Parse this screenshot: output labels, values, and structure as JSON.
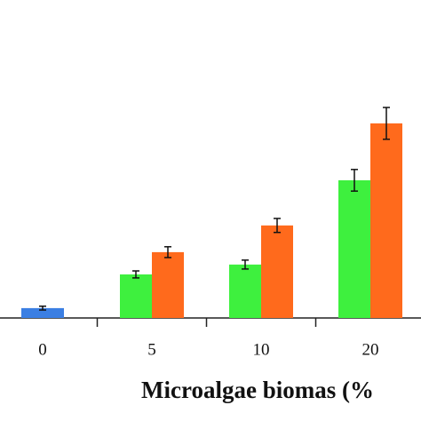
{
  "chart_data": {
    "type": "bar",
    "xlabel": "Microalgae biomas (%",
    "categories": [
      "0",
      "5",
      "10",
      "20"
    ],
    "series": [
      {
        "color": "#3b7fe3",
        "values": [
          3.1,
          null,
          null,
          null
        ],
        "errors": [
          0.6,
          null,
          null,
          null
        ]
      },
      {
        "color": "#3ef03e",
        "values": [
          null,
          13.7,
          16.8,
          43.3
        ],
        "errors": [
          null,
          1.1,
          1.4,
          3.4
        ]
      },
      {
        "color": "#ff6a1c",
        "values": [
          null,
          20.7,
          29.1,
          61.2
        ],
        "errors": [
          null,
          1.7,
          2.2,
          5.0
        ]
      }
    ],
    "ylim": [
      0,
      100
    ]
  }
}
